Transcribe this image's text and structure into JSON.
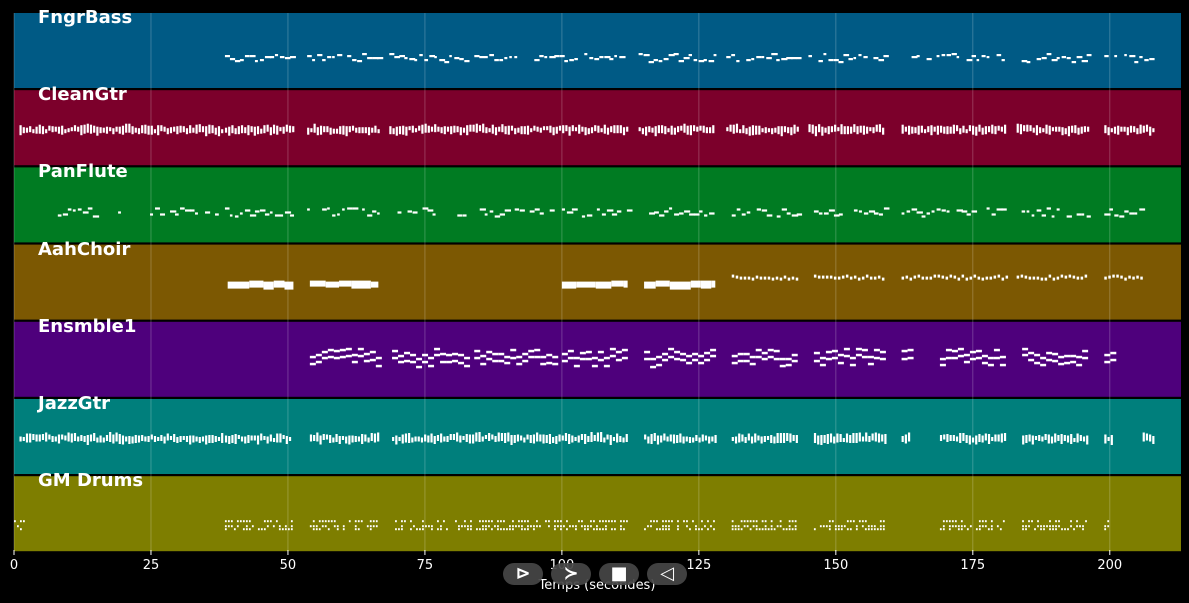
{
  "tracks": [
    {
      "name": "FngrBass",
      "color": "#005a85",
      "style": "dash"
    },
    {
      "name": "CleanGtr",
      "color": "#7c002b",
      "style": "dense"
    },
    {
      "name": "PanFlute",
      "color": "#007b22",
      "style": "dash"
    },
    {
      "name": "AahChoir",
      "color": "#7c5802",
      "style": "block"
    },
    {
      "name": "Ensmble1",
      "color": "#4e007c",
      "style": "line"
    },
    {
      "name": "JazzGtr",
      "color": "#007f7c",
      "style": "dense"
    },
    {
      "name": "GM Drums",
      "color": "#7e7e00",
      "style": "drum"
    }
  ],
  "x_axis": {
    "label": "Temps (secondes)",
    "ticks": [
      "0",
      "25",
      "50",
      "75",
      "100",
      "125",
      "150",
      "175",
      "200"
    ],
    "range": [
      0,
      213
    ]
  },
  "note_phrases": {
    "FngrBass": [
      [
        38.5,
        50.5
      ],
      [
        53.5,
        66.5
      ],
      [
        68.5,
        111
      ],
      [
        114,
        128
      ],
      [
        130,
        143
      ],
      [
        145,
        159
      ],
      [
        162,
        181
      ],
      [
        183,
        196
      ],
      [
        199,
        208
      ]
    ],
    "CleanGtr": [
      [
        1,
        38
      ],
      [
        38.5,
        51
      ],
      [
        53.5,
        66.5
      ],
      [
        68.5,
        112
      ],
      [
        114,
        128
      ],
      [
        130,
        143
      ],
      [
        145,
        159
      ],
      [
        162,
        181
      ],
      [
        183,
        196
      ],
      [
        199,
        208
      ]
    ],
    "PanFlute": [
      [
        8,
        15
      ],
      [
        19,
        21
      ],
      [
        23,
        37
      ],
      [
        38.5,
        51
      ],
      [
        53.5,
        66.5
      ],
      [
        70,
        77
      ],
      [
        80,
        82
      ],
      [
        85,
        98
      ],
      [
        100,
        112
      ],
      [
        115,
        128
      ],
      [
        131,
        143
      ],
      [
        146,
        159
      ],
      [
        162,
        181
      ],
      [
        183,
        196
      ],
      [
        199,
        206
      ]
    ],
    "AahChoir": [
      [
        39,
        51
      ],
      [
        54,
        66.5
      ],
      [
        100,
        112
      ],
      [
        115,
        128
      ],
      [
        131,
        143
      ],
      [
        146,
        159
      ],
      [
        162,
        181
      ],
      [
        183,
        196
      ],
      [
        199,
        206
      ]
    ],
    "Ensmble1": [
      [
        54,
        66.5
      ],
      [
        69,
        83
      ],
      [
        84,
        99
      ],
      [
        100,
        112
      ],
      [
        115,
        128
      ],
      [
        131,
        143
      ],
      [
        146,
        159
      ],
      [
        162,
        163.5
      ],
      [
        169,
        181
      ],
      [
        184,
        196
      ],
      [
        199,
        200.5
      ]
    ],
    "JazzGtr": [
      [
        1,
        38
      ],
      [
        38.5,
        50.5
      ],
      [
        54,
        66.5
      ],
      [
        69,
        112
      ],
      [
        115,
        128
      ],
      [
        131,
        143
      ],
      [
        146,
        159
      ],
      [
        162,
        163.5
      ],
      [
        169,
        181
      ],
      [
        184,
        196
      ],
      [
        199,
        200.5
      ],
      [
        206,
        208
      ]
    ],
    "GM Drums": [
      [
        0,
        2
      ],
      [
        38.5,
        51
      ],
      [
        54,
        66.5
      ],
      [
        69,
        112
      ],
      [
        115,
        128
      ],
      [
        131,
        143
      ],
      [
        146,
        159
      ],
      [
        169,
        181
      ],
      [
        184,
        196
      ],
      [
        199,
        199.8
      ]
    ]
  },
  "controls": [
    {
      "name": "play-icon",
      "glyph": "⊳"
    },
    {
      "name": "fast-forward-icon",
      "glyph": "≻"
    },
    {
      "name": "stop-icon",
      "glyph": "■"
    },
    {
      "name": "rewind-icon",
      "glyph": "◁"
    }
  ]
}
